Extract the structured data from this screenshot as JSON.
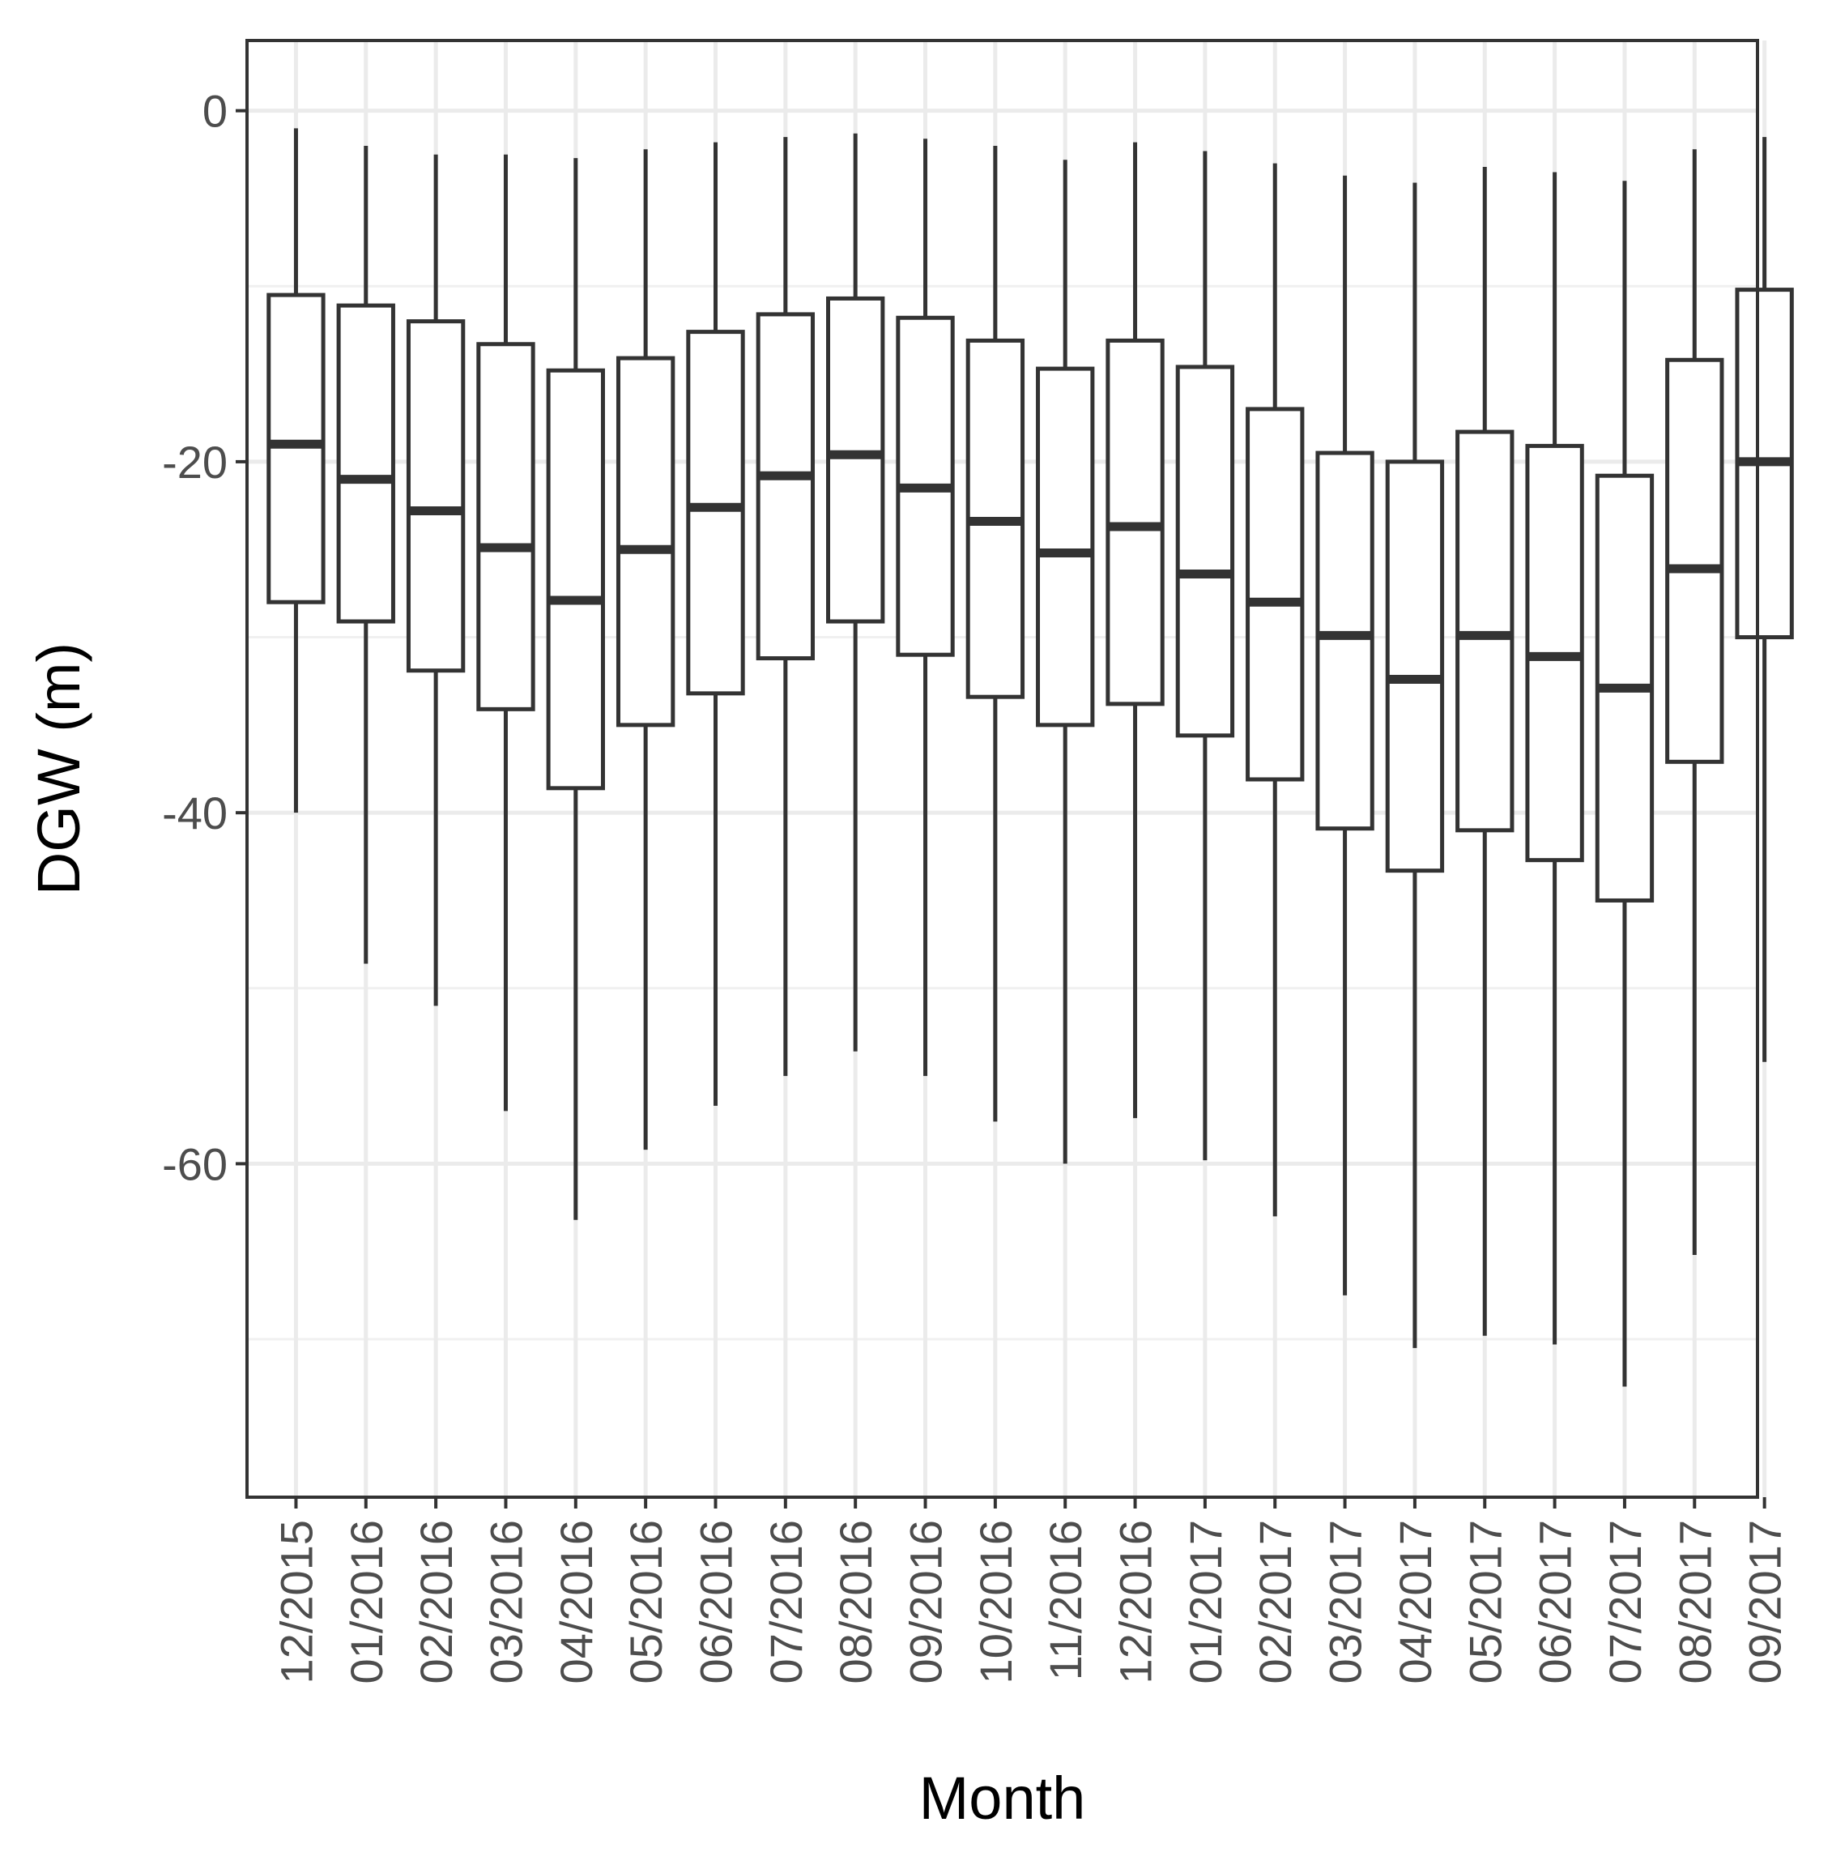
{
  "chart_data": {
    "type": "box",
    "xlabel": "Month",
    "ylabel": "DGW (m)",
    "ylim": [
      -79,
      4
    ],
    "yticks": [
      0,
      -20,
      -40,
      -60
    ],
    "ytick_labels": [
      "0",
      "-20",
      "-40",
      "-60"
    ],
    "grid": true,
    "categories": [
      "12/2015",
      "01/2016",
      "02/2016",
      "03/2016",
      "04/2016",
      "05/2016",
      "06/2016",
      "07/2016",
      "08/2016",
      "09/2016",
      "10/2016",
      "11/2016",
      "12/2016",
      "01/2017",
      "02/2017",
      "03/2017",
      "04/2017",
      "05/2017",
      "06/2017",
      "07/2017",
      "08/2017",
      "09/2017"
    ],
    "boxes": [
      {
        "min": -40.0,
        "q1": -28.0,
        "median": -19.0,
        "q3": -10.5,
        "max": -1.0
      },
      {
        "min": -48.6,
        "q1": -29.1,
        "median": -21.0,
        "q3": -11.1,
        "max": -2.0
      },
      {
        "min": -51.0,
        "q1": -31.9,
        "median": -22.8,
        "q3": -12.0,
        "max": -2.5
      },
      {
        "min": -57.0,
        "q1": -34.1,
        "median": -24.9,
        "q3": -13.3,
        "max": -2.5
      },
      {
        "min": -63.2,
        "q1": -38.6,
        "median": -27.9,
        "q3": -14.8,
        "max": -2.7
      },
      {
        "min": -59.2,
        "q1": -35.0,
        "median": -25.0,
        "q3": -14.1,
        "max": -2.2
      },
      {
        "min": -56.7,
        "q1": -33.2,
        "median": -22.6,
        "q3": -12.6,
        "max": -1.8
      },
      {
        "min": -55.0,
        "q1": -31.2,
        "median": -20.8,
        "q3": -11.6,
        "max": -1.5
      },
      {
        "min": -53.6,
        "q1": -29.1,
        "median": -19.6,
        "q3": -10.7,
        "max": -1.3
      },
      {
        "min": -55.0,
        "q1": -31.0,
        "median": -21.5,
        "q3": -11.8,
        "max": -1.6
      },
      {
        "min": -57.6,
        "q1": -33.4,
        "median": -23.4,
        "q3": -13.1,
        "max": -2.0
      },
      {
        "min": -60.0,
        "q1": -35.0,
        "median": -25.2,
        "q3": -14.7,
        "max": -2.8
      },
      {
        "min": -57.4,
        "q1": -33.8,
        "median": -23.7,
        "q3": -13.1,
        "max": -1.8
      },
      {
        "min": -59.8,
        "q1": -35.6,
        "median": -26.4,
        "q3": -14.6,
        "max": -2.3
      },
      {
        "min": -63.0,
        "q1": -38.1,
        "median": -28.0,
        "q3": -17.0,
        "max": -3.0
      },
      {
        "min": -67.5,
        "q1": -40.9,
        "median": -29.9,
        "q3": -19.5,
        "max": -3.7
      },
      {
        "min": -70.5,
        "q1": -43.3,
        "median": -32.4,
        "q3": -20.0,
        "max": -4.1
      },
      {
        "min": -69.8,
        "q1": -41.0,
        "median": -29.9,
        "q3": -18.3,
        "max": -3.2
      },
      {
        "min": -70.3,
        "q1": -42.7,
        "median": -31.1,
        "q3": -19.1,
        "max": -3.5
      },
      {
        "min": -72.7,
        "q1": -45.0,
        "median": -32.9,
        "q3": -20.8,
        "max": -4.0
      },
      {
        "min": -65.2,
        "q1": -37.1,
        "median": -26.1,
        "q3": -14.2,
        "max": -2.2
      },
      {
        "min": -54.2,
        "q1": -30.0,
        "median": -20.0,
        "q3": -10.2,
        "max": -1.5
      }
    ]
  }
}
